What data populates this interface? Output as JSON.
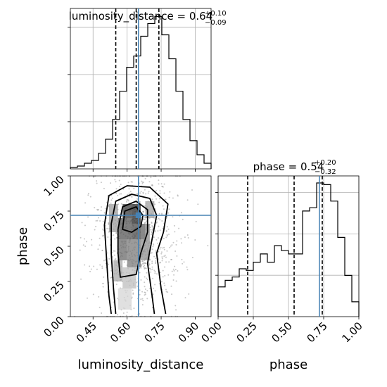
{
  "chart_data": {
    "type": "corner",
    "truth_color": "#4682b4",
    "hist_color": "#000000",
    "grid": true,
    "parameters": [
      {
        "name": "luminosity_distance",
        "xlim": [
          0.35,
          0.97
        ],
        "ticks": [
          0.45,
          0.6,
          0.75,
          0.9
        ],
        "tick_labels": [
          "0.45",
          "0.60",
          "0.75",
          "0.90"
        ],
        "title_name": "luminosity_distance",
        "title_value": "0.64",
        "title_plus": "+0.10",
        "title_minus": "−0.09",
        "quantiles": [
          0.55,
          0.64,
          0.74
        ],
        "truth": 0.65,
        "hist_bin_start": 0.35,
        "hist_bin_width": 0.031,
        "hist_counts": [
          1,
          2,
          4,
          6,
          11,
          21,
          35,
          55,
          72,
          80,
          94,
          103,
          108,
          95,
          78,
          55,
          35,
          20,
          10,
          4
        ]
      },
      {
        "name": "phase",
        "xlim": [
          0.0,
          1.0
        ],
        "ticks": [
          0.0,
          0.25,
          0.5,
          0.75,
          1.0
        ],
        "tick_labels": [
          "0.00",
          "0.25",
          "0.50",
          "0.75",
          "1.00"
        ],
        "title_name": "phase",
        "title_value": "0.54",
        "title_plus": "+0.20",
        "title_minus": "−0.32",
        "quantiles": [
          0.21,
          0.54,
          0.74
        ],
        "truth": 0.72,
        "hist_bin_start": 0.0,
        "hist_bin_width": 0.05,
        "hist_counts": [
          18,
          22,
          24,
          29,
          28,
          33,
          38,
          33,
          43,
          40,
          38,
          38,
          64,
          66,
          81,
          80,
          70,
          48,
          25,
          9
        ]
      }
    ],
    "joint": {
      "x_param": "luminosity_distance",
      "y_param": "phase",
      "truth": [
        0.65,
        0.72
      ],
      "ylabel": "phase"
    }
  }
}
